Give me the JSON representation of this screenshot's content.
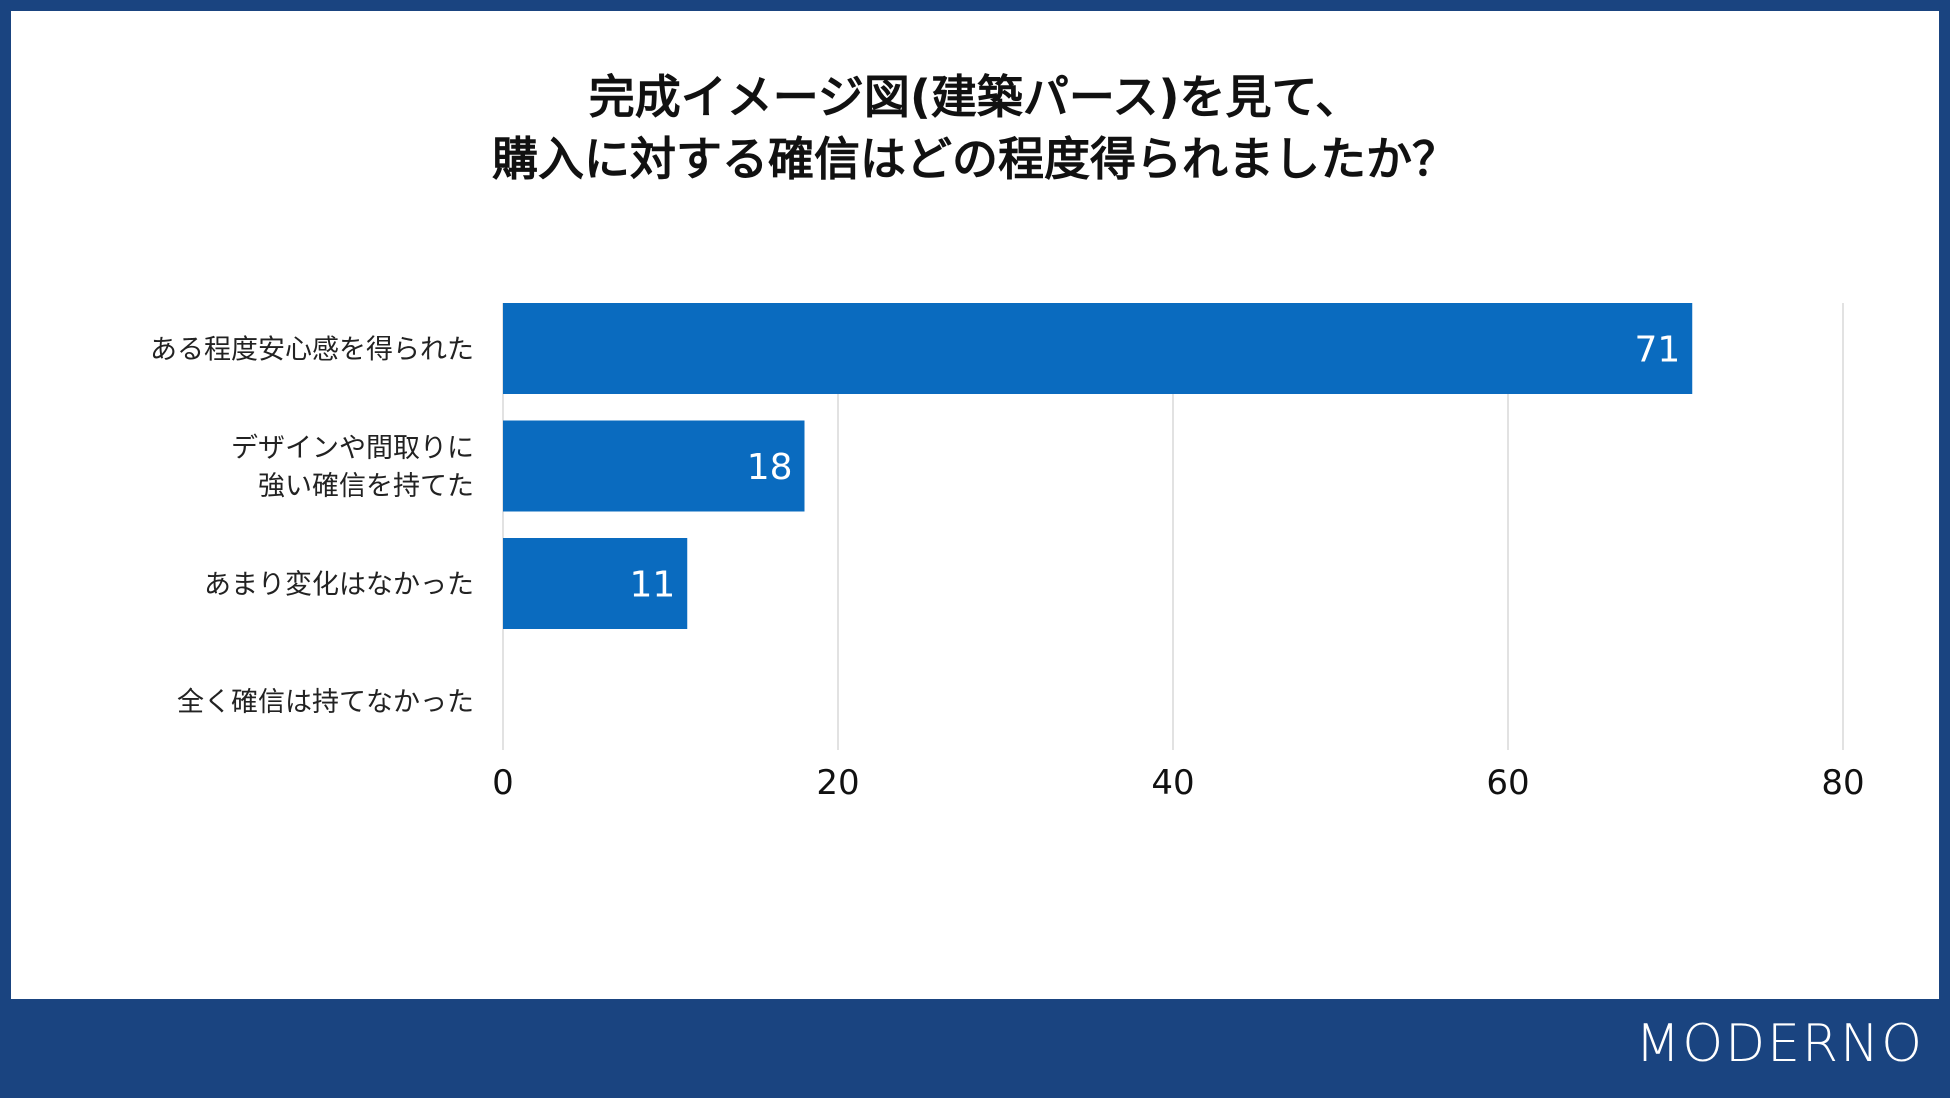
{
  "title": {
    "line1": "完成イメージ図(建築パース)を見て、",
    "line2": "購入に対する確信はどの程度得られましたか？"
  },
  "brand": {
    "logo": "MODERNO"
  },
  "colors": {
    "frame": "#1a4480",
    "bar": "#0a6bbf",
    "grid": "#d9d9d9",
    "label": "#222222",
    "bar_label": "#ffffff"
  },
  "chart_data": {
    "type": "bar",
    "orientation": "horizontal",
    "categories": [
      [
        "ある程度安心感を得られた"
      ],
      [
        "デザインや間取りに",
        "強い確信を持てた"
      ],
      [
        "あまり変化はなかった"
      ],
      [
        "全く確信は持てなかった"
      ]
    ],
    "values": [
      71,
      18,
      11,
      0
    ],
    "value_labels": [
      "71",
      "18",
      "11",
      ""
    ],
    "xlim": [
      0,
      80
    ],
    "xticks": [
      0,
      20,
      40,
      60,
      80
    ],
    "grid": true,
    "legend": "none"
  }
}
